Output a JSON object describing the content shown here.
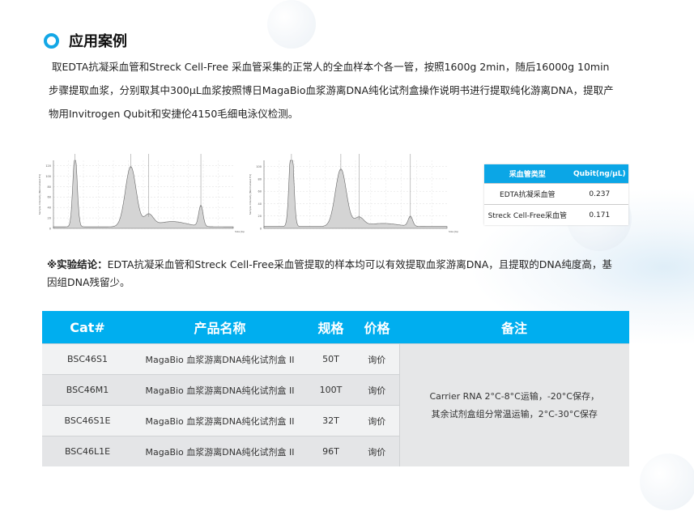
{
  "section": {
    "title": "应用案例",
    "icon": "ring-bullet-icon",
    "accent": "#13a7e6"
  },
  "intro": [
    "取EDTA抗凝采血管和Streck Cell-Free 采血管采集的正常人的全血样本个各一管，按照1600g 2min，随后16000g 10min",
    "步骤提取血浆，分别取其中300μL血浆按照博日MagaBio血浆游离DNA纯化试剂盒操作说明书进行提取纯化游离DNA，提取产",
    "物用Invitrogen Qubit和安捷伦4150毛细电泳仪检测。"
  ],
  "chart_data": [
    {
      "type": "area",
      "ylabel": "Sample Intensity [Normalized FU]",
      "xlabel": "Size [bp]",
      "yticks": [
        0,
        20,
        40,
        60,
        80,
        100,
        120
      ],
      "ylim": [
        0,
        130
      ],
      "peaks": [
        {
          "pos": 0.12,
          "height": 140,
          "width": 0.012
        },
        {
          "pos": 0.43,
          "height": 115,
          "width": 0.03
        },
        {
          "pos": 0.53,
          "height": 22,
          "width": 0.025
        },
        {
          "pos": 0.66,
          "height": 10,
          "width": 0.08
        },
        {
          "pos": 0.82,
          "height": 40,
          "width": 0.012
        }
      ]
    },
    {
      "type": "area",
      "ylabel": "Sample Intensity [Normalized FU]",
      "xlabel": "Size [bp]",
      "yticks": [
        0,
        20,
        40,
        60,
        80,
        100
      ],
      "ylim": [
        0,
        110
      ],
      "peaks": [
        {
          "pos": 0.15,
          "height": 140,
          "width": 0.012
        },
        {
          "pos": 0.42,
          "height": 93,
          "width": 0.03
        },
        {
          "pos": 0.52,
          "height": 14,
          "width": 0.025
        },
        {
          "pos": 0.65,
          "height": 5,
          "width": 0.08
        },
        {
          "pos": 0.8,
          "height": 16,
          "width": 0.012
        }
      ]
    }
  ],
  "qubit_table": {
    "headers": [
      "采血管类型",
      "Qubit(ng/μL)"
    ],
    "rows": [
      [
        "EDTA抗凝采血管",
        "0.237"
      ],
      [
        "Streck Cell-Free采血管",
        "0.171"
      ]
    ],
    "header_color": "#0ba6e6"
  },
  "conclusion": {
    "label": "※实验结论：",
    "line1": "EDTA抗凝采血管和Streck Cell-Free采血管提取的样本均可以有效提取血浆游离DNA，且提取的DNA纯度高，基",
    "line2": "因组DNA残留少。"
  },
  "product_table": {
    "header_color": "#00aeef",
    "headers": [
      "Cat#",
      "产品名称",
      "规格",
      "价格",
      "备注"
    ],
    "rows": [
      [
        "BSC46S1",
        "MagaBio 血浆游离DNA纯化试剂盒 II",
        "50T",
        "询价"
      ],
      [
        "BSC46M1",
        "MagaBio 血浆游离DNA纯化试剂盒 II",
        "100T",
        "询价"
      ],
      [
        "BSC46S1E",
        "MagaBio 血浆游离DNA纯化试剂盒 II",
        "32T",
        "询价"
      ],
      [
        "BSC46L1E",
        "MagaBio 血浆游离DNA纯化试剂盒 II",
        "96T",
        "询价"
      ]
    ],
    "note_line1": "Carrier RNA 2°C-8°C运输，-20°C保存，",
    "note_line2": "其余试剂盒组分常温运输，2°C-30°C保存"
  }
}
